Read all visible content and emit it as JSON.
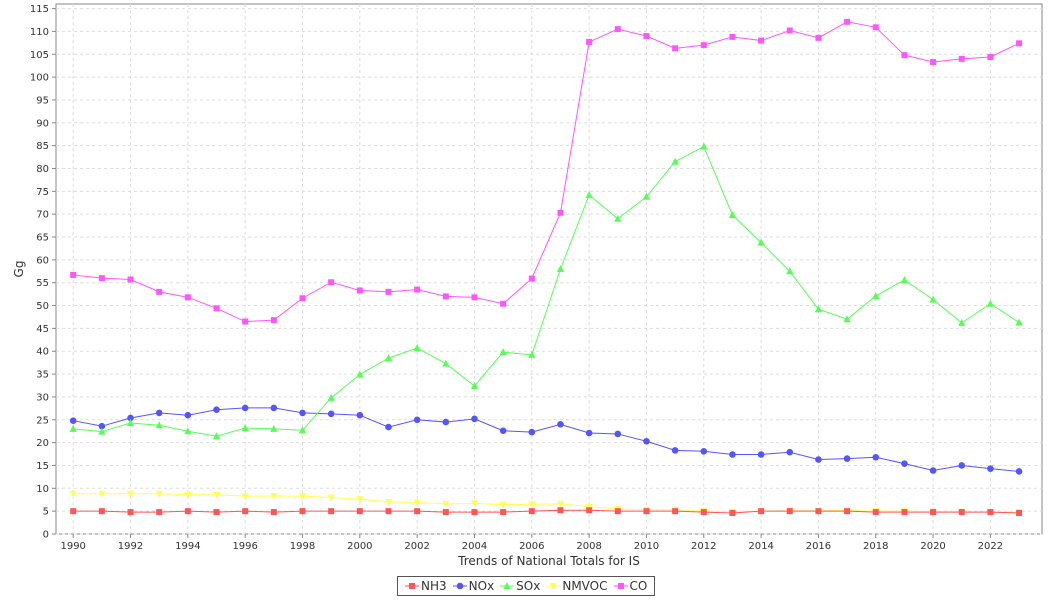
{
  "chart_data": {
    "type": "line",
    "xlabel": "Trends of National Totals for IS",
    "ylabel": "Gg",
    "ylim": [
      0,
      116
    ],
    "yticks": [
      0,
      5,
      10,
      15,
      20,
      25,
      30,
      35,
      40,
      45,
      50,
      55,
      60,
      65,
      70,
      75,
      80,
      85,
      90,
      95,
      100,
      105,
      110,
      115
    ],
    "xlim": [
      1989.4,
      2023.8
    ],
    "xticks": [
      1990,
      1992,
      1994,
      1996,
      1998,
      2000,
      2002,
      2004,
      2006,
      2008,
      2010,
      2012,
      2014,
      2016,
      2018,
      2020,
      2022
    ],
    "grid": true,
    "legend_position": "bottom",
    "x": [
      1990,
      1991,
      1992,
      1993,
      1994,
      1995,
      1996,
      1997,
      1998,
      1999,
      2000,
      2001,
      2002,
      2003,
      2004,
      2005,
      2006,
      2007,
      2008,
      2009,
      2010,
      2011,
      2012,
      2013,
      2014,
      2015,
      2016,
      2017,
      2018,
      2019,
      2020,
      2021,
      2022,
      2023
    ],
    "series": [
      {
        "name": "NH3",
        "color": "#ff5555",
        "marker": "square",
        "values": [
          5.0,
          5.0,
          4.8,
          4.8,
          5.0,
          4.8,
          5.0,
          4.8,
          5.0,
          5.0,
          5.0,
          5.0,
          5.0,
          4.8,
          4.8,
          4.8,
          5.0,
          5.2,
          5.2,
          5.0,
          5.0,
          5.0,
          4.8,
          4.6,
          5.0,
          5.0,
          5.0,
          5.0,
          4.8,
          4.8,
          4.8,
          4.8,
          4.8,
          4.6
        ]
      },
      {
        "name": "NOx",
        "color": "#5555ff",
        "marker": "circle",
        "values": [
          24.8,
          23.6,
          25.4,
          26.5,
          26.0,
          27.2,
          27.6,
          27.6,
          26.5,
          26.3,
          26.0,
          23.4,
          25.0,
          24.5,
          25.2,
          22.6,
          22.3,
          24.0,
          22.1,
          21.9,
          20.3,
          18.3,
          18.1,
          17.4,
          17.4,
          17.9,
          16.3,
          16.5,
          16.8,
          15.4,
          13.9,
          15.0,
          14.3,
          13.7
        ]
      },
      {
        "name": "SOx",
        "color": "#55ff55",
        "marker": "triangle",
        "values": [
          23.0,
          22.4,
          24.3,
          23.8,
          22.5,
          21.4,
          23.2,
          23.0,
          22.7,
          29.8,
          34.9,
          38.5,
          40.7,
          37.3,
          32.4,
          39.8,
          39.2,
          58.0,
          74.2,
          69.0,
          73.8,
          81.5,
          84.8,
          69.8,
          63.8,
          57.5,
          49.2,
          47.0,
          52.1,
          55.6,
          51.3,
          46.2,
          50.4,
          46.3
        ]
      },
      {
        "name": "NMVOC",
        "color": "#ffff55",
        "marker": "down-triangle",
        "values": [
          8.8,
          8.8,
          8.8,
          8.8,
          8.6,
          8.6,
          8.3,
          8.3,
          8.3,
          8.0,
          7.6,
          7.0,
          6.9,
          6.6,
          6.7,
          6.4,
          6.5,
          6.6,
          6.0,
          5.5,
          5.3,
          5.3,
          5.0,
          4.9,
          5.0,
          5.1,
          5.1,
          5.2,
          5.0,
          5.0,
          4.9,
          4.9,
          4.8,
          4.8
        ]
      },
      {
        "name": "CO",
        "color": "#ff55ff",
        "marker": "square",
        "values": [
          56.7,
          56.0,
          55.7,
          53.0,
          51.8,
          49.4,
          46.5,
          46.8,
          51.6,
          55.1,
          53.3,
          53.0,
          53.5,
          52.0,
          51.8,
          50.4,
          55.9,
          70.3,
          107.7,
          110.5,
          109.0,
          106.3,
          107.0,
          108.8,
          108.0,
          110.2,
          108.6,
          112.1,
          110.9,
          104.8,
          103.3,
          104.0,
          104.4,
          107.4
        ]
      }
    ]
  }
}
